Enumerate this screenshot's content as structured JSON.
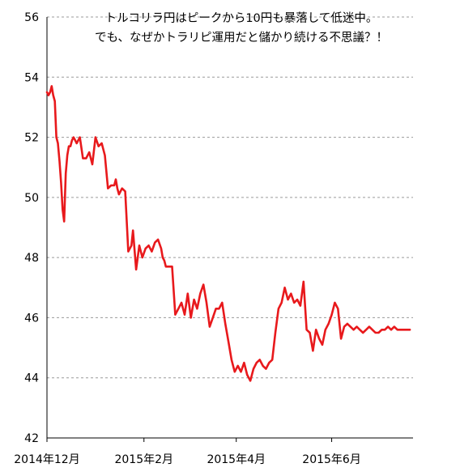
{
  "chart_data": {
    "type": "line",
    "title": [
      "トルコリラ円はピークから10円も暴落して低迷中。",
      "でも、なぜかトラリピ運用だと儲かり続ける不思議？！"
    ],
    "xlabel": "",
    "ylabel": "",
    "ylim": [
      42,
      56
    ],
    "yticks": [
      42,
      44,
      46,
      48,
      50,
      52,
      54,
      56
    ],
    "xlim": [
      "2014-12-01",
      "2015-07-23"
    ],
    "xticks": [
      {
        "date": "2014-12-01",
        "label": "2014年12月"
      },
      {
        "date": "2015-02-01",
        "label": "2015年2月"
      },
      {
        "date": "2015-04-01",
        "label": "2015年4月"
      },
      {
        "date": "2015-06-01",
        "label": "2015年6月"
      }
    ],
    "grid": "horizontal dashed",
    "legend": "none",
    "series": [
      {
        "color": "#e8191c",
        "x": [
          "2014-12-01",
          "2014-12-02",
          "2014-12-03",
          "2014-12-04",
          "2014-12-05",
          "2014-12-06",
          "2014-12-07",
          "2014-12-08",
          "2014-12-09",
          "2014-12-10",
          "2014-12-11",
          "2014-12-12",
          "2014-12-13",
          "2014-12-14",
          "2014-12-15",
          "2014-12-16",
          "2014-12-17",
          "2014-12-18",
          "2014-12-19",
          "2014-12-20",
          "2014-12-22",
          "2014-12-24",
          "2014-12-26",
          "2014-12-28",
          "2014-12-30",
          "2015-01-01",
          "2015-01-03",
          "2015-01-05",
          "2015-01-07",
          "2015-01-09",
          "2015-01-11",
          "2015-01-13",
          "2015-01-14",
          "2015-01-15",
          "2015-01-16",
          "2015-01-18",
          "2015-01-20",
          "2015-01-22",
          "2015-01-24",
          "2015-01-25",
          "2015-01-27",
          "2015-01-29",
          "2015-01-31",
          "2015-02-02",
          "2015-02-04",
          "2015-02-06",
          "2015-02-08",
          "2015-02-10",
          "2015-02-12",
          "2015-02-13",
          "2015-02-14",
          "2015-02-15",
          "2015-02-17",
          "2015-02-19",
          "2015-02-21",
          "2015-02-23",
          "2015-02-25",
          "2015-02-27",
          "2015-03-01",
          "2015-03-03",
          "2015-03-05",
          "2015-03-07",
          "2015-03-09",
          "2015-03-11",
          "2015-03-13",
          "2015-03-15",
          "2015-03-17",
          "2015-03-19",
          "2015-03-21",
          "2015-03-23",
          "2015-03-25",
          "2015-03-27",
          "2015-03-29",
          "2015-03-31",
          "2015-04-02",
          "2015-04-04",
          "2015-04-06",
          "2015-04-08",
          "2015-04-10",
          "2015-04-12",
          "2015-04-14",
          "2015-04-16",
          "2015-04-18",
          "2015-04-20",
          "2015-04-22",
          "2015-04-24",
          "2015-04-26",
          "2015-04-28",
          "2015-04-30",
          "2015-05-02",
          "2015-05-04",
          "2015-05-06",
          "2015-05-08",
          "2015-05-10",
          "2015-05-12",
          "2015-05-14",
          "2015-05-16",
          "2015-05-18",
          "2015-05-20",
          "2015-05-22",
          "2015-05-24",
          "2015-05-26",
          "2015-05-28",
          "2015-05-30",
          "2015-06-01",
          "2015-06-03",
          "2015-06-05",
          "2015-06-07",
          "2015-06-09",
          "2015-06-11",
          "2015-06-13",
          "2015-06-15",
          "2015-06-17",
          "2015-06-19",
          "2015-06-21",
          "2015-06-23",
          "2015-06-25",
          "2015-06-27",
          "2015-06-29",
          "2015-07-01",
          "2015-07-03",
          "2015-07-05",
          "2015-07-07",
          "2015-07-09",
          "2015-07-11",
          "2015-07-13",
          "2015-07-15",
          "2015-07-17",
          "2015-07-19",
          "2015-07-21"
        ],
        "y": [
          53.5,
          53.4,
          53.5,
          53.7,
          53.4,
          53.2,
          52.0,
          51.8,
          51.2,
          50.5,
          49.6,
          49.2,
          50.8,
          51.4,
          51.7,
          51.7,
          51.9,
          52.0,
          51.9,
          51.8,
          52.0,
          51.3,
          51.3,
          51.5,
          51.1,
          52.0,
          51.7,
          51.8,
          51.4,
          50.3,
          50.4,
          50.4,
          50.6,
          50.3,
          50.1,
          50.3,
          50.2,
          48.2,
          48.4,
          48.9,
          47.6,
          48.4,
          48.0,
          48.3,
          48.4,
          48.2,
          48.5,
          48.6,
          48.3,
          48.0,
          47.9,
          47.7,
          47.7,
          47.7,
          46.1,
          46.3,
          46.5,
          46.1,
          46.8,
          46.0,
          46.6,
          46.3,
          46.8,
          47.1,
          46.5,
          45.7,
          46.0,
          46.3,
          46.3,
          46.5,
          45.8,
          45.2,
          44.6,
          44.2,
          44.4,
          44.2,
          44.5,
          44.1,
          43.9,
          44.3,
          44.5,
          44.6,
          44.4,
          44.3,
          44.5,
          44.6,
          45.5,
          46.3,
          46.5,
          47.0,
          46.6,
          46.8,
          46.5,
          46.6,
          46.4,
          47.2,
          45.6,
          45.5,
          44.9,
          45.6,
          45.3,
          45.1,
          45.6,
          45.8,
          46.1,
          46.5,
          46.3,
          45.3,
          45.7,
          45.8,
          45.7,
          45.6,
          45.7,
          45.6,
          45.5,
          45.6,
          45.7,
          45.6,
          45.5,
          45.5,
          45.6,
          45.6,
          45.7,
          45.6,
          45.7,
          45.6,
          45.6,
          45.6,
          45.6,
          45.6
        ]
      }
    ]
  }
}
